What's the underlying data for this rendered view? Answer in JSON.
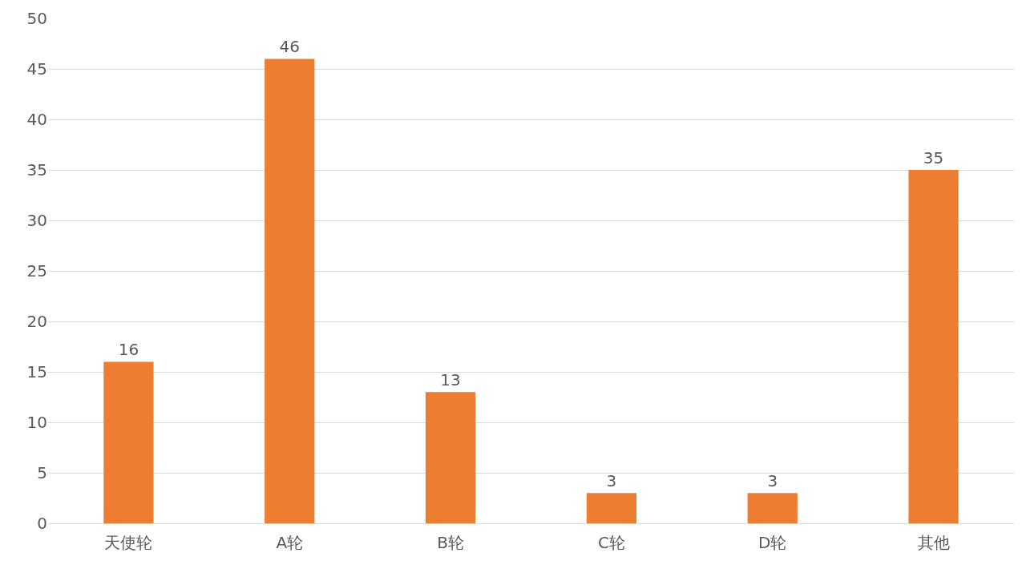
{
  "chart_data": {
    "type": "bar",
    "categories": [
      "天使轮",
      "A轮",
      "B轮",
      "C轮",
      "D轮",
      "其他"
    ],
    "values": [
      16,
      46,
      13,
      3,
      3,
      35
    ],
    "color": "#ed7d31",
    "ylim": [
      0,
      50
    ],
    "yticks": [
      0,
      5,
      10,
      15,
      20,
      25,
      30,
      35,
      40,
      45,
      50
    ],
    "grid": "y",
    "data_labels": true
  }
}
